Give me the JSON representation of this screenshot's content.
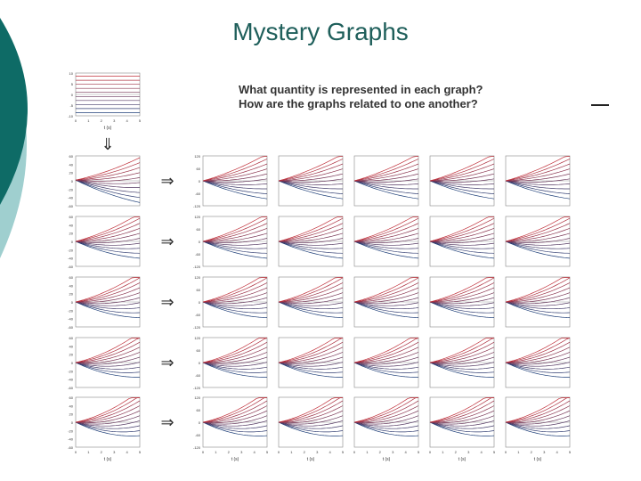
{
  "slide": {
    "title": "Mystery Graphs",
    "question_1": "What quantity is represented in each graph?",
    "question_2": "How are the graphs related to one another?"
  },
  "figure": {
    "top_graph": {
      "y_ticks": [
        "10",
        "5",
        "0",
        "-5",
        "-10"
      ],
      "x_ticks": [
        "0",
        "1",
        "2",
        "3",
        "4",
        "5"
      ],
      "x_label": "t (s)"
    },
    "left_column_y_ticks": [
      "60",
      "40",
      "20",
      "0",
      "-20",
      "-40",
      "-60"
    ],
    "right_grid_y_ticks": [
      "120",
      "100",
      "80",
      "60",
      "40",
      "20",
      "0",
      "-20",
      "-40",
      "-60",
      "-80",
      "-100",
      "-120"
    ],
    "bottom_x_ticks": [
      "0",
      "1",
      "2",
      "3",
      "4",
      "5"
    ],
    "bottom_x_label": "t (s)",
    "arrow_symbol": "⇒",
    "down_arrow_symbol": "⇓",
    "colors": {
      "teal": "#0e6b66",
      "light_teal": "#9fcfcf",
      "blue_curve": "#1f3f78",
      "red_curve": "#c0303a",
      "zero_line": "#999999"
    }
  }
}
